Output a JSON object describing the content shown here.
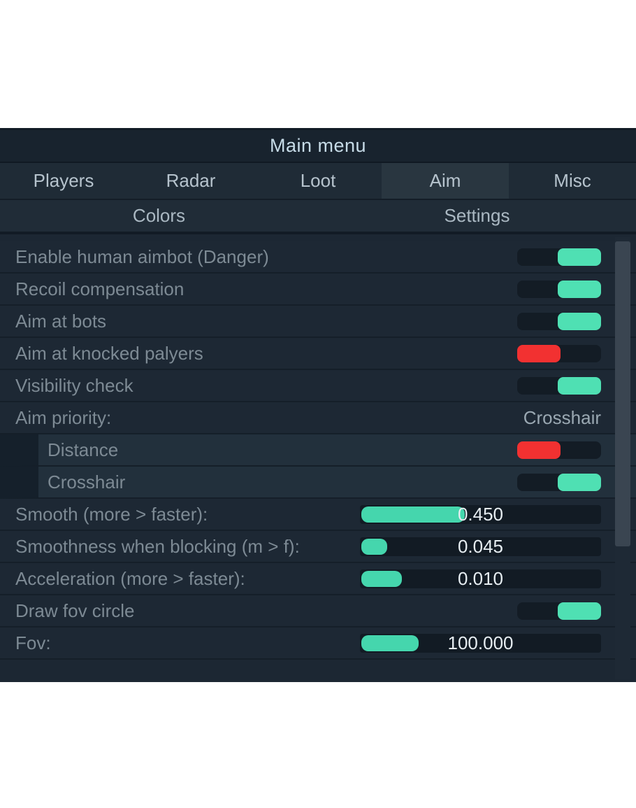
{
  "window": {
    "title": "Main menu"
  },
  "tabs": [
    {
      "label": "Players",
      "active": false
    },
    {
      "label": "Radar",
      "active": false
    },
    {
      "label": "Loot",
      "active": false
    },
    {
      "label": "Aim",
      "active": true
    },
    {
      "label": "Misc",
      "active": false
    }
  ],
  "subtabs": [
    {
      "label": "Colors"
    },
    {
      "label": "Settings"
    }
  ],
  "rows": [
    {
      "type": "toggle",
      "label": "Enable human aimbot (Danger)",
      "state": "on"
    },
    {
      "type": "toggle",
      "label": "Recoil compensation",
      "state": "on"
    },
    {
      "type": "toggle",
      "label": "Aim at bots",
      "state": "on"
    },
    {
      "type": "toggle",
      "label": "Aim at knocked palyers",
      "state": "off"
    },
    {
      "type": "toggle",
      "label": "Visibility check",
      "state": "on"
    },
    {
      "type": "value",
      "label": "Aim priority:",
      "value": "Crosshair"
    },
    {
      "type": "toggle",
      "label": "Distance",
      "state": "off",
      "indent": true
    },
    {
      "type": "toggle",
      "label": "Crosshair",
      "state": "on",
      "indent": true
    },
    {
      "type": "slider",
      "label": "Smooth (more > faster):",
      "value": "0.450",
      "fill_pct": 44
    },
    {
      "type": "slider",
      "label": "Smoothness when blocking (m > f):",
      "value": "0.045",
      "fill_pct": 12
    },
    {
      "type": "slider",
      "label": "Acceleration (more > faster):",
      "value": "0.010",
      "fill_pct": 18
    },
    {
      "type": "toggle",
      "label": "Draw fov circle",
      "state": "on"
    },
    {
      "type": "slider",
      "label": "Fov:",
      "value": "100.000",
      "fill_pct": 25
    }
  ],
  "colors": {
    "toggle_on": "#4fe0b3",
    "toggle_off": "#f23131",
    "slider_fill": "#45d6ad",
    "panel_bg": "#1c2733",
    "title_text": "#c6dbe7",
    "label_text": "#7d8a94"
  }
}
